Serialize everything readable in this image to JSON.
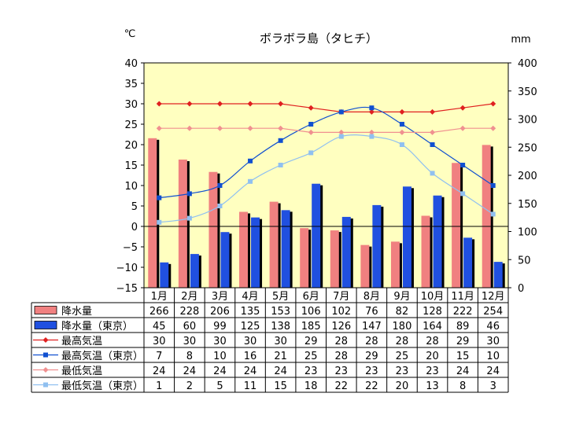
{
  "chart_data": {
    "type": "bar+line",
    "title": "ボラボラ島（タヒチ）",
    "y_left_unit": "℃",
    "y_right_unit": "mm",
    "y_left_lim": [
      -15,
      40
    ],
    "y_left_ticks": [
      40,
      35,
      30,
      25,
      20,
      15,
      10,
      5,
      0,
      -5,
      -10,
      -15
    ],
    "y_right_lim": [
      0,
      400
    ],
    "y_right_ticks": [
      400,
      350,
      300,
      250,
      200,
      150,
      100,
      50,
      0
    ],
    "categories": [
      "1月",
      "2月",
      "3月",
      "4月",
      "5月",
      "6月",
      "7月",
      "8月",
      "9月",
      "10月",
      "11月",
      "12月"
    ],
    "series": [
      {
        "name": "降水量",
        "kind": "bar",
        "axis": "right",
        "color": "#f08080",
        "values": [
          266,
          228,
          206,
          135,
          153,
          106,
          102,
          76,
          82,
          128,
          222,
          254
        ]
      },
      {
        "name": "降水量（東京）",
        "kind": "bar",
        "axis": "right",
        "color": "#2050e0",
        "values": [
          45,
          60,
          99,
          125,
          138,
          185,
          126,
          147,
          180,
          164,
          89,
          46
        ]
      },
      {
        "name": "最高気温",
        "kind": "line",
        "marker": "diamond",
        "axis": "left",
        "color": "#e02020",
        "values": [
          30,
          30,
          30,
          30,
          30,
          29,
          28,
          28,
          28,
          28,
          29,
          30
        ]
      },
      {
        "name": "最高気温（東京）",
        "kind": "line",
        "marker": "square",
        "axis": "left",
        "color": "#1050d0",
        "values": [
          7,
          8,
          10,
          16,
          21,
          25,
          28,
          29,
          25,
          20,
          15,
          10
        ]
      },
      {
        "name": "最低気温",
        "kind": "line",
        "marker": "diamond",
        "axis": "left",
        "color": "#f09090",
        "values": [
          24,
          24,
          24,
          24,
          24,
          23,
          23,
          23,
          23,
          23,
          24,
          24
        ]
      },
      {
        "name": "最低気温（東京）",
        "kind": "line",
        "marker": "square",
        "axis": "left",
        "color": "#90c0f0",
        "values": [
          1,
          2,
          5,
          11,
          15,
          18,
          22,
          22,
          20,
          13,
          8,
          3
        ]
      }
    ]
  }
}
